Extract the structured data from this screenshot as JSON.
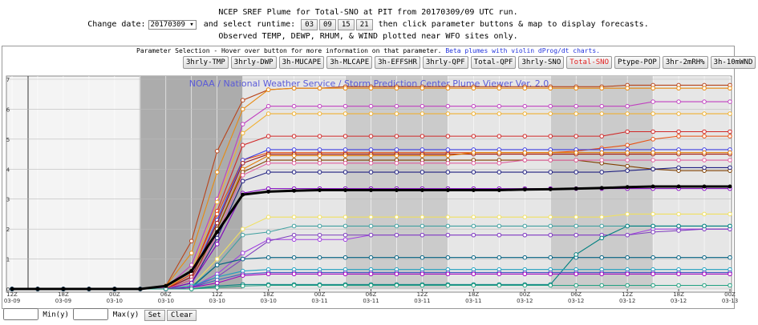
{
  "header": {
    "title": "NCEP SREF Plume for Total-SNO at PIT from 20170309/09 UTC run.",
    "change_date_label": "Change date:",
    "date": "20170309",
    "runtime_label": "and select runtime:",
    "runtimes": [
      "03",
      "09",
      "15",
      "21"
    ],
    "instructions": "then click parameter buttons & map to display forecasts.",
    "note": "Observed TEMP, DEWP, RHUM, & WIND plotted near WFO sites only."
  },
  "panel": {
    "text": "Parameter Selection - Hover over button for more information on that parameter.",
    "link": "Beta plumes with violin dProg/dt charts.",
    "buttons": [
      "3hrly-TMP",
      "3hrly-DWP",
      "3h-MUCAPE",
      "3h-MLCAPE",
      "3h-EFFSHR",
      "3hrly-QPF",
      "Total-QPF",
      "3hrly-SNO",
      "Total-SNO",
      "Ptype-POP",
      "3hr-2mRH%",
      "3h-10mWND"
    ],
    "active": "Total-SNO"
  },
  "chart_data": {
    "type": "line",
    "title": "NOAA / National Weather Service / Storm Prediction Center Plume Viewer Ver. 2.0",
    "categories": [
      [
        "12Z",
        "03-09"
      ],
      null,
      [
        "18Z",
        "03-09"
      ],
      null,
      [
        "00Z",
        "03-10"
      ],
      null,
      [
        "06Z",
        "03-10"
      ],
      null,
      [
        "12Z",
        "03-10"
      ],
      null,
      [
        "18Z",
        "03-10"
      ],
      null,
      [
        "00Z",
        "03-11"
      ],
      null,
      [
        "06Z",
        "03-11"
      ],
      null,
      [
        "12Z",
        "03-11"
      ],
      null,
      [
        "18Z",
        "03-11"
      ],
      null,
      [
        "00Z",
        "03-12"
      ],
      null,
      [
        "06Z",
        "03-12"
      ],
      null,
      [
        "12Z",
        "03-12"
      ],
      null,
      [
        "18Z",
        "03-12"
      ],
      null,
      [
        "00Z",
        "03-13"
      ]
    ],
    "ylim": [
      0,
      7
    ],
    "yticks": [
      0,
      1,
      2,
      3,
      4,
      5,
      6,
      7
    ],
    "grid": true,
    "series": [
      {
        "color": "#b8441a",
        "values": [
          0,
          0,
          0,
          0,
          0,
          0,
          0.1,
          1.6,
          4.6,
          6.3,
          6.65,
          6.7,
          6.7,
          6.75,
          6.75,
          6.75,
          6.75,
          6.75,
          6.75,
          6.75,
          6.75,
          6.75,
          6.75,
          6.75,
          6.8,
          6.8,
          6.8,
          6.8,
          6.8
        ]
      },
      {
        "color": "#e88a10",
        "values": [
          0,
          0,
          0,
          0,
          0,
          0,
          0.1,
          1.2,
          3.9,
          6.0,
          6.65,
          6.7,
          6.7,
          6.7,
          6.7,
          6.7,
          6.7,
          6.7,
          6.7,
          6.7,
          6.7,
          6.7,
          6.7,
          6.7,
          6.7,
          6.7,
          6.7,
          6.7,
          6.7
        ]
      },
      {
        "color": "#c040c0",
        "values": [
          0,
          0,
          0,
          0,
          0,
          0,
          0.05,
          0.8,
          3.0,
          5.5,
          6.1,
          6.1,
          6.1,
          6.1,
          6.1,
          6.1,
          6.1,
          6.1,
          6.1,
          6.1,
          6.1,
          6.1,
          6.1,
          6.1,
          6.1,
          6.25,
          6.25,
          6.25,
          6.25
        ]
      },
      {
        "color": "#f0b030",
        "values": [
          0,
          0,
          0,
          0,
          0,
          0,
          0,
          0.6,
          2.9,
          5.2,
          5.85,
          5.85,
          5.85,
          5.85,
          5.85,
          5.85,
          5.85,
          5.85,
          5.85,
          5.85,
          5.85,
          5.85,
          5.85,
          5.85,
          5.85,
          5.85,
          5.85,
          5.85,
          5.85
        ]
      },
      {
        "color": "#d02828",
        "values": [
          0,
          0,
          0,
          0,
          0,
          0,
          0,
          0.5,
          2.6,
          4.8,
          5.1,
          5.1,
          5.1,
          5.1,
          5.1,
          5.1,
          5.1,
          5.1,
          5.1,
          5.1,
          5.1,
          5.1,
          5.1,
          5.1,
          5.25,
          5.25,
          5.25,
          5.25,
          5.25
        ]
      },
      {
        "color": "#e85010",
        "values": [
          0,
          0,
          0,
          0,
          0,
          0,
          0,
          0.5,
          2.5,
          4.3,
          4.55,
          4.55,
          4.55,
          4.55,
          4.55,
          4.55,
          4.55,
          4.55,
          4.55,
          4.55,
          4.55,
          4.55,
          4.6,
          4.7,
          4.8,
          5.0,
          5.1,
          5.1,
          5.1
        ]
      },
      {
        "color": "#4040e0",
        "values": [
          0,
          0,
          0,
          0,
          0,
          0,
          0,
          0.4,
          2.3,
          4.3,
          4.65,
          4.65,
          4.65,
          4.65,
          4.65,
          4.65,
          4.65,
          4.65,
          4.65,
          4.65,
          4.65,
          4.65,
          4.65,
          4.65,
          4.65,
          4.65,
          4.65,
          4.65,
          4.65
        ]
      },
      {
        "color": "#a01818",
        "values": [
          0,
          0,
          0,
          0,
          0,
          0,
          0,
          0.4,
          2.2,
          4.2,
          4.5,
          4.5,
          4.5,
          4.5,
          4.5,
          4.5,
          4.5,
          4.5,
          4.5,
          4.5,
          4.5,
          4.5,
          4.5,
          4.5,
          4.5,
          4.5,
          4.5,
          4.5,
          4.5
        ]
      },
      {
        "color": "#e07800",
        "values": [
          0,
          0,
          0,
          0,
          0,
          0,
          0,
          0.3,
          2.0,
          4.0,
          4.45,
          4.45,
          4.45,
          4.45,
          4.45,
          4.45,
          4.45,
          4.45,
          4.55,
          4.55,
          4.55,
          4.55,
          4.55,
          4.55,
          4.55,
          4.55,
          4.55,
          4.55,
          4.55
        ]
      },
      {
        "color": "#804000",
        "values": [
          0,
          0,
          0,
          0,
          0,
          0,
          0,
          0.3,
          2.0,
          3.9,
          4.3,
          4.3,
          4.3,
          4.3,
          4.3,
          4.3,
          4.3,
          4.3,
          4.3,
          4.3,
          4.3,
          4.3,
          4.3,
          4.2,
          4.1,
          4.0,
          3.95,
          3.95,
          3.95
        ]
      },
      {
        "color": "#e060a0",
        "values": [
          0,
          0,
          0,
          0,
          0,
          0,
          0,
          0.3,
          1.8,
          3.8,
          4.2,
          4.2,
          4.2,
          4.2,
          4.2,
          4.2,
          4.2,
          4.2,
          4.2,
          4.2,
          4.3,
          4.3,
          4.3,
          4.3,
          4.3,
          4.3,
          4.3,
          4.3,
          4.3
        ]
      },
      {
        "color": "#202080",
        "values": [
          0,
          0,
          0,
          0,
          0,
          0,
          0,
          0.2,
          1.7,
          3.6,
          3.9,
          3.9,
          3.9,
          3.9,
          3.9,
          3.9,
          3.9,
          3.9,
          3.9,
          3.9,
          3.9,
          3.9,
          3.9,
          3.9,
          3.95,
          4.0,
          4.05,
          4.05,
          4.05
        ]
      },
      {
        "color": "#8000c0",
        "values": [
          0,
          0,
          0,
          0,
          0,
          0,
          0,
          0.2,
          1.5,
          3.2,
          3.35,
          3.35,
          3.35,
          3.35,
          3.35,
          3.35,
          3.35,
          3.35,
          3.35,
          3.35,
          3.35,
          3.35,
          3.35,
          3.35,
          3.35,
          3.35,
          3.35,
          3.35,
          3.35
        ]
      },
      {
        "color": "#f0e060",
        "values": [
          0,
          0,
          0,
          0,
          0,
          0,
          0,
          0.1,
          1.0,
          2.0,
          2.4,
          2.4,
          2.4,
          2.4,
          2.4,
          2.4,
          2.4,
          2.4,
          2.4,
          2.4,
          2.4,
          2.4,
          2.4,
          2.4,
          2.5,
          2.5,
          2.5,
          2.5,
          2.5
        ]
      },
      {
        "color": "#40a0a0",
        "values": [
          0,
          0,
          0,
          0,
          0,
          0,
          0,
          0.1,
          0.8,
          1.8,
          1.9,
          2.1,
          2.1,
          2.1,
          2.1,
          2.1,
          2.1,
          2.1,
          2.1,
          2.1,
          2.1,
          2.1,
          2.1,
          2.1,
          2.1,
          2.1,
          2.1,
          2.1,
          2.1
        ]
      },
      {
        "color": "#a040e0",
        "values": [
          0,
          0,
          0,
          0,
          0,
          0,
          0,
          0.05,
          0.5,
          1.2,
          1.65,
          1.65,
          1.65,
          1.65,
          1.8,
          1.8,
          1.8,
          1.8,
          1.8,
          1.8,
          1.8,
          1.8,
          1.8,
          1.8,
          1.8,
          2.0,
          2.0,
          2.0,
          2.0
        ]
      },
      {
        "color": "#8040c0",
        "values": [
          0,
          0,
          0,
          0,
          0,
          0,
          0,
          0.05,
          0.4,
          1.0,
          1.6,
          1.8,
          1.8,
          1.8,
          1.8,
          1.8,
          1.8,
          1.8,
          1.8,
          1.8,
          1.8,
          1.8,
          1.8,
          1.8,
          1.8,
          1.9,
          1.95,
          2.0,
          2.0
        ]
      },
      {
        "color": "#006080",
        "values": [
          0,
          0,
          0,
          0,
          0,
          0,
          0,
          0.05,
          0.8,
          1.0,
          1.05,
          1.05,
          1.05,
          1.05,
          1.05,
          1.05,
          1.05,
          1.05,
          1.05,
          1.05,
          1.05,
          1.05,
          1.05,
          1.05,
          1.05,
          1.05,
          1.05,
          1.05,
          1.05
        ]
      },
      {
        "color": "#008080",
        "values": [
          0,
          0,
          0,
          0,
          0,
          0,
          0,
          0,
          0.1,
          0.15,
          0.15,
          0.15,
          0.15,
          0.15,
          0.15,
          0.15,
          0.15,
          0.15,
          0.15,
          0.15,
          0.15,
          0.15,
          1.15,
          1.7,
          2.1,
          2.1,
          2.1,
          2.1,
          2.1
        ]
      },
      {
        "color": "#20a0c0",
        "values": [
          0,
          0,
          0,
          0,
          0,
          0,
          0,
          0.1,
          0.4,
          0.6,
          0.65,
          0.65,
          0.65,
          0.65,
          0.65,
          0.65,
          0.65,
          0.65,
          0.65,
          0.65,
          0.65,
          0.65,
          0.65,
          0.65,
          0.65,
          0.65,
          0.65,
          0.65,
          0.65
        ]
      },
      {
        "color": "#4060c0",
        "values": [
          0,
          0,
          0,
          0,
          0,
          0,
          0,
          0.05,
          0.3,
          0.5,
          0.55,
          0.55,
          0.55,
          0.55,
          0.55,
          0.55,
          0.55,
          0.55,
          0.55,
          0.55,
          0.55,
          0.55,
          0.55,
          0.55,
          0.55,
          0.55,
          0.55,
          0.55,
          0.55
        ]
      },
      {
        "color": "#a000c0",
        "values": [
          0,
          0,
          0,
          0,
          0,
          0,
          0,
          0.05,
          0.2,
          0.45,
          0.5,
          0.5,
          0.5,
          0.5,
          0.5,
          0.5,
          0.5,
          0.5,
          0.5,
          0.5,
          0.5,
          0.5,
          0.5,
          0.5,
          0.5,
          0.5,
          0.5,
          0.5,
          0.5
        ]
      },
      {
        "color": "#20a080",
        "values": [
          0,
          0,
          0,
          0,
          0,
          0,
          0,
          0,
          0.05,
          0.1,
          0.12,
          0.12,
          0.12,
          0.12,
          0.12,
          0.12,
          0.12,
          0.12,
          0.12,
          0.12,
          0.12,
          0.12,
          0.12,
          0.12,
          0.12,
          0.12,
          0.12,
          0.12,
          0.12
        ]
      },
      {
        "color": "#000000",
        "width": 3,
        "values": [
          0,
          0,
          0,
          0,
          0,
          0,
          0.1,
          0.6,
          1.9,
          3.15,
          3.25,
          3.28,
          3.3,
          3.3,
          3.3,
          3.3,
          3.3,
          3.3,
          3.3,
          3.3,
          3.32,
          3.33,
          3.35,
          3.37,
          3.4,
          3.42,
          3.42,
          3.42,
          3.42
        ]
      }
    ]
  },
  "controls": {
    "min_label": "Min(y)",
    "max_label": "Max(y)",
    "set": "Set",
    "clear": "Clear"
  }
}
